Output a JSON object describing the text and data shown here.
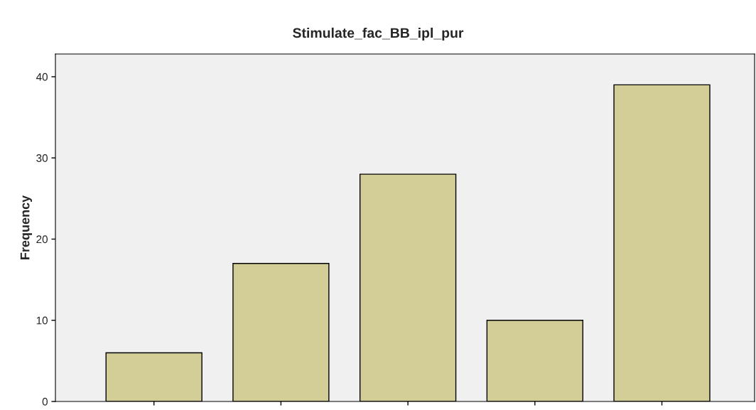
{
  "chart_data": {
    "type": "bar",
    "title": "Stimulate_fac_BB_ipl_pur",
    "ylabel": "Frequency",
    "categories": [
      null,
      null,
      null,
      null,
      null
    ],
    "values": [
      6,
      17,
      28,
      10,
      39
    ],
    "color": "#d3ce97",
    "ylim": [
      0,
      42.8
    ],
    "yticks": [
      0,
      10,
      20,
      30,
      40
    ],
    "grid": false
  }
}
